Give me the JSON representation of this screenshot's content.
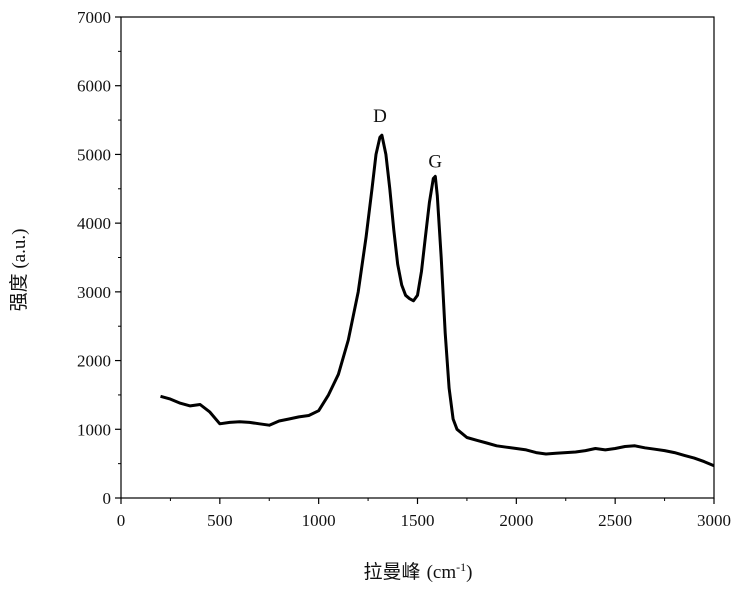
{
  "chart_data": {
    "type": "line",
    "title": "",
    "xlabel": "拉曼峰",
    "xlabel_unit": "(cm",
    "xlabel_unit_sup": "-1",
    "xlabel_unit_close": ")",
    "ylabel": "强度 (a.u.)",
    "xlim": [
      0,
      3000
    ],
    "ylim": [
      0,
      7000
    ],
    "xticks": [
      0,
      500,
      1000,
      1500,
      2000,
      2500,
      3000
    ],
    "yticks": [
      0,
      1000,
      2000,
      3000,
      4000,
      5000,
      6000,
      7000
    ],
    "grid": false,
    "legend": "none",
    "line_color": "#000000",
    "annotations": [
      {
        "text": "D",
        "x": 1310,
        "y": 5560
      },
      {
        "text": "G",
        "x": 1590,
        "y": 4900
      }
    ],
    "series": [
      {
        "x": [
          200,
          250,
          300,
          350,
          400,
          450,
          500,
          550,
          600,
          650,
          700,
          750,
          800,
          850,
          900,
          950,
          1000,
          1050,
          1100,
          1150,
          1200,
          1240,
          1270,
          1290,
          1310,
          1320,
          1340,
          1360,
          1380,
          1400,
          1420,
          1440,
          1460,
          1480,
          1500,
          1520,
          1540,
          1560,
          1580,
          1590,
          1600,
          1620,
          1640,
          1660,
          1680,
          1700,
          1750,
          1800,
          1850,
          1900,
          1950,
          2000,
          2050,
          2100,
          2150,
          2200,
          2250,
          2300,
          2350,
          2400,
          2450,
          2500,
          2550,
          2600,
          2650,
          2700,
          2750,
          2800,
          2850,
          2900,
          2950,
          3000
        ],
        "y": [
          1480,
          1440,
          1380,
          1340,
          1360,
          1250,
          1080,
          1100,
          1110,
          1100,
          1080,
          1060,
          1120,
          1150,
          1180,
          1200,
          1270,
          1500,
          1800,
          2300,
          3000,
          3800,
          4500,
          5000,
          5250,
          5280,
          5000,
          4500,
          3900,
          3400,
          3100,
          2950,
          2900,
          2870,
          2950,
          3300,
          3800,
          4300,
          4650,
          4680,
          4400,
          3500,
          2400,
          1600,
          1150,
          1000,
          880,
          840,
          800,
          760,
          740,
          720,
          700,
          660,
          640,
          650,
          660,
          670,
          690,
          720,
          700,
          720,
          750,
          760,
          730,
          710,
          690,
          660,
          620,
          580,
          530,
          470
        ]
      }
    ]
  }
}
